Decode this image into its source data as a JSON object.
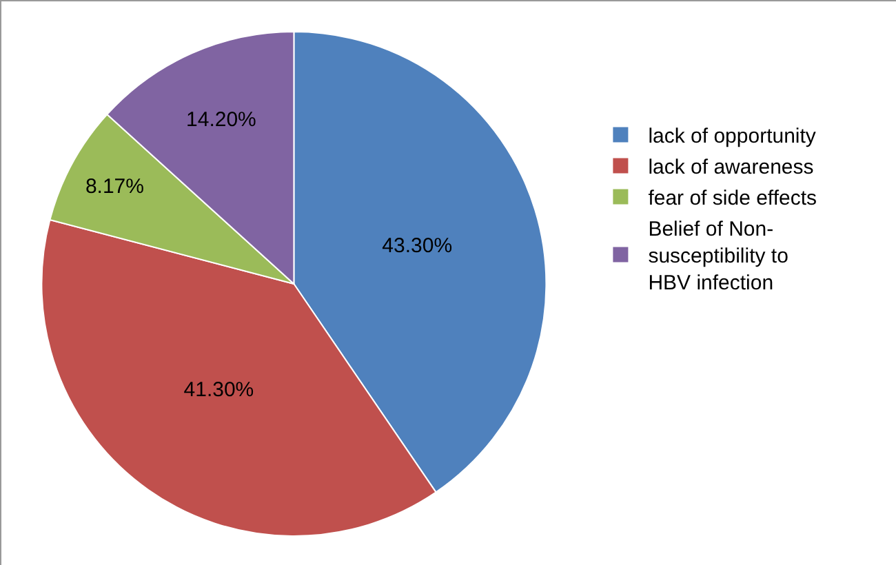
{
  "chart_data": {
    "type": "pie",
    "categories": [
      "lack of opportunity",
      "lack of awareness",
      "fear of side effects",
      "Belief of Non-susceptibility to HBV infection"
    ],
    "values": [
      43.3,
      41.3,
      8.17,
      14.2
    ],
    "value_labels": [
      "43.30%",
      "41.30%",
      "8.17%",
      "14.20%"
    ],
    "colors": [
      "#4f81bd",
      "#c0504d",
      "#9bbb59",
      "#8064a2"
    ],
    "legend": "right"
  }
}
